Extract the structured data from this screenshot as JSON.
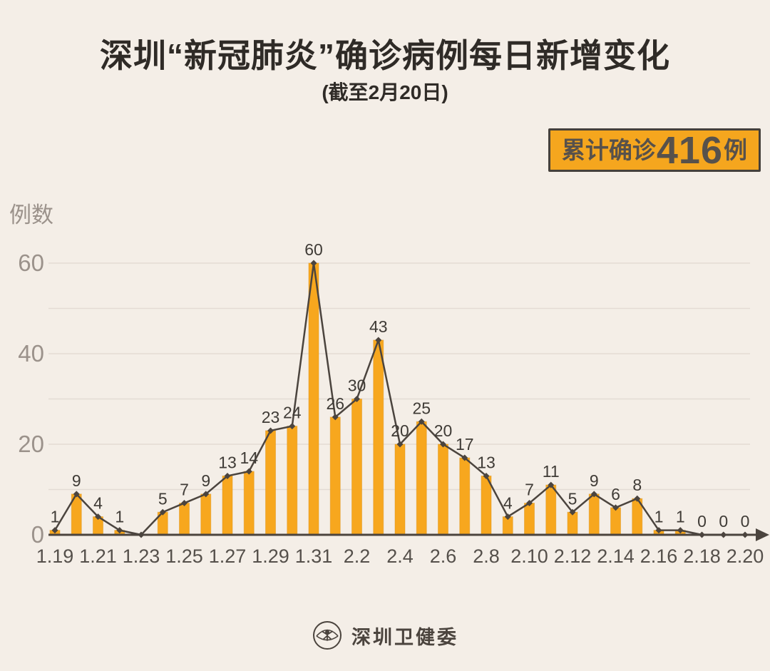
{
  "header": {
    "title": "深圳“新冠肺炎”确诊病例每日新增变化",
    "subtitle": "(截至2月20日)",
    "badge": {
      "label": "累计确诊",
      "count": "416",
      "unit": "例"
    }
  },
  "colors": {
    "background": "#F4EEE7",
    "title_text": "#2F2B27",
    "badge_bg": "#F5A61E",
    "badge_border": "#45403B",
    "badge_text": "#57514B",
    "footer_text": "#4B443E"
  },
  "chart_data": {
    "type": "bar",
    "overlay": "line",
    "y_axis_title": "例数",
    "x": [
      "1.19",
      "1.20",
      "1.21",
      "1.22",
      "1.23",
      "1.24",
      "1.25",
      "1.26",
      "1.27",
      "1.28",
      "1.29",
      "1.30",
      "1.31",
      "2.1",
      "2.2",
      "2.3",
      "2.4",
      "2.5",
      "2.6",
      "2.7",
      "2.8",
      "2.9",
      "2.10",
      "2.11",
      "2.12",
      "2.13",
      "2.14",
      "2.15",
      "2.16",
      "2.17",
      "2.18",
      "2.19",
      "2.20"
    ],
    "values": [
      1,
      9,
      4,
      1,
      0,
      5,
      7,
      9,
      13,
      14,
      23,
      24,
      60,
      26,
      30,
      43,
      20,
      25,
      20,
      17,
      13,
      4,
      7,
      11,
      5,
      9,
      6,
      8,
      1,
      1,
      0,
      0,
      0
    ],
    "value_labels": [
      "1",
      "9",
      "4",
      "1",
      "",
      "5",
      "7",
      "9",
      "13",
      "14",
      "23",
      "24",
      "60",
      "26",
      "30",
      "43",
      "20",
      "25",
      "20",
      "17",
      "13",
      "4",
      "7",
      "11",
      "5",
      "9",
      "6",
      "8",
      "1",
      "1",
      "0",
      "0",
      "0"
    ],
    "x_tick_labels": [
      "1.19",
      "1.21",
      "1.23",
      "1.25",
      "1.27",
      "1.29",
      "1.31",
      "2.2",
      "2.4",
      "2.6",
      "2.8",
      "2.10",
      "2.12",
      "2.14",
      "2.16",
      "2.18",
      "2.20"
    ],
    "y_ticks": [
      0,
      20,
      40,
      60
    ],
    "ylim": [
      0,
      62
    ],
    "grid_step": 10,
    "grid": "on",
    "legend": "none",
    "bar_color": "#F7A71E",
    "bar_edge_color": "#DB9113",
    "line_color": "#4B443E",
    "grid_color": "#E3DBD4",
    "axis_color": "#4B443E",
    "y_label_color": "#9B928B",
    "x_label_color": "#55504B",
    "value_label_color": "#3F3B36"
  },
  "footer": {
    "org_name": "深圳卫健委"
  }
}
